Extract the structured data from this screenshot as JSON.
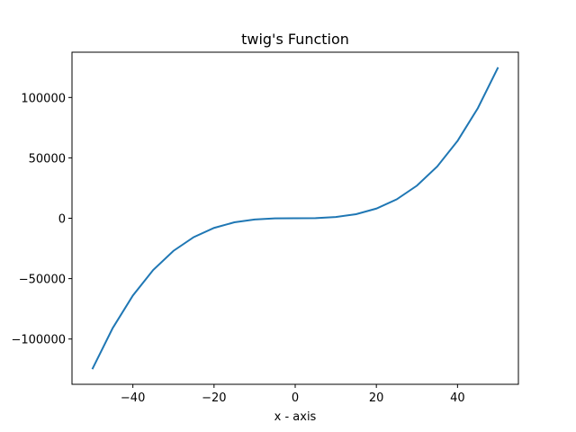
{
  "chart_data": {
    "type": "line",
    "title": "twig's Function",
    "xlabel": "x - axis",
    "ylabel": "",
    "xlim": [
      -55,
      55
    ],
    "ylim": [
      -137500,
      137500
    ],
    "xticks": [
      -40,
      -20,
      0,
      20,
      40
    ],
    "xtick_labels": [
      "−40",
      "−20",
      "0",
      "20",
      "40"
    ],
    "yticks": [
      -100000,
      -50000,
      0,
      50000,
      100000
    ],
    "ytick_labels": [
      "−100000",
      "−50000",
      "0",
      "50000",
      "100000"
    ],
    "grid": false,
    "series": [
      {
        "color": "#1f77b4",
        "x": [
          -50,
          -45,
          -40,
          -35,
          -30,
          -25,
          -20,
          -15,
          -10,
          -5,
          0,
          5,
          10,
          15,
          20,
          25,
          30,
          35,
          40,
          45,
          50
        ],
        "y": [
          -125000,
          -91125,
          -64000,
          -42875,
          -27000,
          -15625,
          -8000,
          -3375,
          -1000,
          -125,
          0,
          125,
          1000,
          3375,
          8000,
          15625,
          27000,
          42875,
          64000,
          91125,
          125000
        ]
      }
    ]
  }
}
